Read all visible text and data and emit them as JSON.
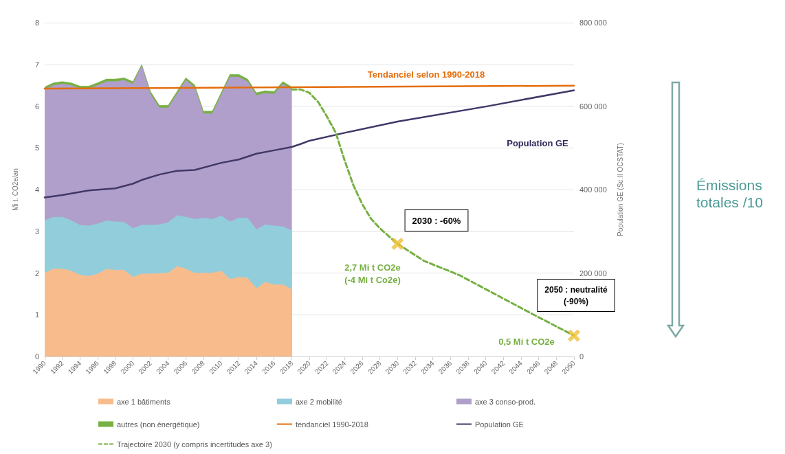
{
  "chart_data": {
    "type": "area",
    "stacked": true,
    "ylabel": "Mi t. CO2e/an",
    "y2label": "Population GE (Sc.II OCSTAT)",
    "xlim": [
      1990,
      2050
    ],
    "xticks": [
      1990,
      1992,
      1994,
      1996,
      1998,
      2000,
      2002,
      2004,
      2006,
      2008,
      2010,
      2012,
      2014,
      2016,
      2018,
      2020,
      2022,
      2024,
      2026,
      2028,
      2030,
      2032,
      2034,
      2036,
      2038,
      2040,
      2042,
      2044,
      2046,
      2048,
      2050
    ],
    "ylim": [
      0,
      8
    ],
    "yticks": [
      0,
      1,
      2,
      3,
      4,
      5,
      6,
      7,
      8
    ],
    "y2lim": [
      0,
      800000
    ],
    "y2ticks": [
      0,
      {
        "value": 200000,
        "label": "200 000"
      },
      {
        "value": 400000,
        "label": "400 000"
      },
      {
        "value": 600000,
        "label": "600 000"
      },
      {
        "value": 800000,
        "label": "800 000"
      }
    ],
    "grid": "y",
    "legend": "bottom",
    "x": [
      1990,
      1991,
      1992,
      1993,
      1994,
      1995,
      1996,
      1997,
      1998,
      1999,
      2000,
      2001,
      2002,
      2003,
      2004,
      2005,
      2006,
      2007,
      2008,
      2009,
      2010,
      2011,
      2012,
      2013,
      2014,
      2015,
      2016,
      2017,
      2018
    ],
    "series": [
      {
        "name": "axe 1 bâtiments",
        "color": "#f8bc8c",
        "values": [
          2.0,
          2.1,
          2.1,
          2.05,
          1.95,
          1.92,
          1.98,
          2.09,
          2.07,
          2.07,
          1.9,
          1.98,
          1.98,
          1.99,
          2.0,
          2.16,
          2.1,
          2.0,
          2.0,
          2.0,
          2.05,
          1.85,
          1.9,
          1.88,
          1.63,
          1.78,
          1.72,
          1.72,
          1.61
        ]
      },
      {
        "name": "axe 2 mobilité",
        "color": "#92cddc",
        "values": [
          1.26,
          1.24,
          1.24,
          1.21,
          1.2,
          1.21,
          1.2,
          1.16,
          1.16,
          1.15,
          1.17,
          1.17,
          1.17,
          1.17,
          1.21,
          1.22,
          1.24,
          1.29,
          1.32,
          1.29,
          1.32,
          1.38,
          1.42,
          1.44,
          1.41,
          1.38,
          1.41,
          1.39,
          1.41
        ]
      },
      {
        "name": "axe 3 conso-prod.",
        "color": "#b09fca",
        "values": [
          3.14,
          3.16,
          3.19,
          3.24,
          3.27,
          3.29,
          3.32,
          3.34,
          3.36,
          3.4,
          3.46,
          3.82,
          3.14,
          2.8,
          2.75,
          2.91,
          3.28,
          3.16,
          2.5,
          2.53,
          2.89,
          3.47,
          3.38,
          3.27,
          3.22,
          3.15,
          3.16,
          3.42,
          3.38
        ]
      },
      {
        "name": "autres (non énergétique)",
        "color": "#77b043",
        "values": [
          0.06,
          0.06,
          0.06,
          0.06,
          0.06,
          0.06,
          0.06,
          0.06,
          0.06,
          0.06,
          0.06,
          0.03,
          0.06,
          0.06,
          0.06,
          0.06,
          0.06,
          0.06,
          0.06,
          0.06,
          0.06,
          0.06,
          0.06,
          0.06,
          0.06,
          0.06,
          0.06,
          0.06,
          0.06
        ]
      },
      {
        "name": "tendanciel 1990-2018",
        "type": "line",
        "color": "#e46c0a",
        "x": [
          1990,
          2050
        ],
        "values": [
          6.42,
          6.49
        ]
      },
      {
        "name": "Population GE",
        "type": "line",
        "axis": "y2",
        "color": "#403868",
        "x": [
          1990,
          1992,
          1995,
          1998,
          2000,
          2001,
          2003,
          2005,
          2007,
          2010,
          2012,
          2014,
          2016,
          2018,
          2019,
          2020,
          2024,
          2030,
          2040,
          2050
        ],
        "values": [
          381000,
          387000,
          398000,
          403000,
          414000,
          423000,
          436000,
          445000,
          447000,
          464000,
          472000,
          486000,
          494000,
          502000,
          509000,
          517000,
          536000,
          563000,
          599000,
          638000
        ]
      },
      {
        "name": "Trajectoire 2030 (y compris incertitudes axe 3)",
        "type": "line",
        "line_style": "dashed",
        "color": "#77b043",
        "x": [
          2018,
          2019,
          2020,
          2021,
          2022,
          2023,
          2024,
          2025,
          2026,
          2027,
          2028,
          2030,
          2033,
          2037,
          2041,
          2045,
          2050
        ],
        "values": [
          6.4,
          6.4,
          6.32,
          6.1,
          5.75,
          5.36,
          4.7,
          4.1,
          3.65,
          3.3,
          3.07,
          2.7,
          2.29,
          1.95,
          1.5,
          1.05,
          0.5
        ]
      },
      {
        "type": "scatter",
        "marker": "cross",
        "color": "#f2c230",
        "x": [
          2030,
          2050
        ],
        "values": [
          2.7,
          0.5
        ]
      }
    ],
    "annotations": [
      "Tendanciel selon 1990-2018",
      "Population GE",
      "2030 : -60%",
      "2,7 Mi t CO2e\n(-4 Mi t Co2e)",
      "2050 : neutralité\n(-90%)",
      "0,5 Mi t CO2e",
      "Émissions totales /10"
    ]
  }
}
